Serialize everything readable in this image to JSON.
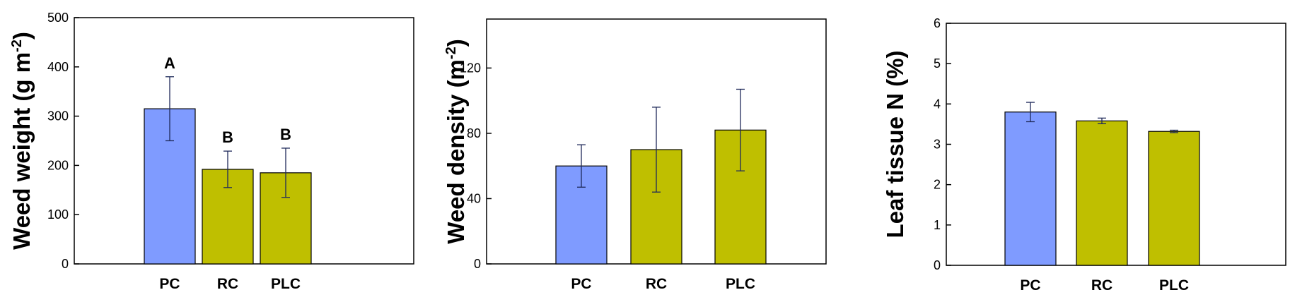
{
  "chart_data": [
    {
      "type": "bar",
      "ylabel": "Weed weight (g m",
      "ylabel_sup": "-2",
      "ylabel_end": ")",
      "categories": [
        "PC",
        "RC",
        "PLC"
      ],
      "values": [
        315,
        192,
        185
      ],
      "errors": [
        65,
        37,
        50
      ],
      "letters": [
        "A",
        "B",
        "B"
      ],
      "colors": [
        "#7f9bff",
        "#bfbf00",
        "#bfbf00"
      ],
      "ylim": [
        0,
        500
      ],
      "yticks": [
        0,
        100,
        200,
        300,
        400,
        500
      ],
      "ytick_labels": [
        "0",
        "100",
        "200",
        "300",
        "400",
        "500"
      ]
    },
    {
      "type": "bar",
      "ylabel": "Weed density (m",
      "ylabel_sup": "-2",
      "ylabel_end": ")",
      "categories": [
        "PC",
        "RC",
        "PLC"
      ],
      "values": [
        60,
        70,
        82
      ],
      "errors": [
        13,
        26,
        25
      ],
      "letters": [
        "",
        "",
        ""
      ],
      "colors": [
        "#7f9bff",
        "#bfbf00",
        "#bfbf00"
      ],
      "ylim": [
        0,
        150
      ],
      "yticks": [
        0,
        40,
        80,
        120
      ],
      "ytick_labels": [
        "0",
        "40",
        "80",
        "120"
      ]
    },
    {
      "type": "bar",
      "ylabel": "Leaf tissue N (%)",
      "ylabel_sup": "",
      "ylabel_end": "",
      "categories": [
        "PC",
        "RC",
        "PLC"
      ],
      "values": [
        3.8,
        3.58,
        3.32
      ],
      "errors": [
        0.24,
        0.07,
        0.03
      ],
      "letters": [
        "",
        "",
        ""
      ],
      "colors": [
        "#7f9bff",
        "#bfbf00",
        "#bfbf00"
      ],
      "ylim": [
        0,
        6
      ],
      "yticks": [
        0,
        1,
        2,
        3,
        4,
        5,
        6
      ],
      "ytick_labels": [
        "0",
        "1",
        "2",
        "3",
        "4",
        "5",
        "6"
      ]
    }
  ]
}
